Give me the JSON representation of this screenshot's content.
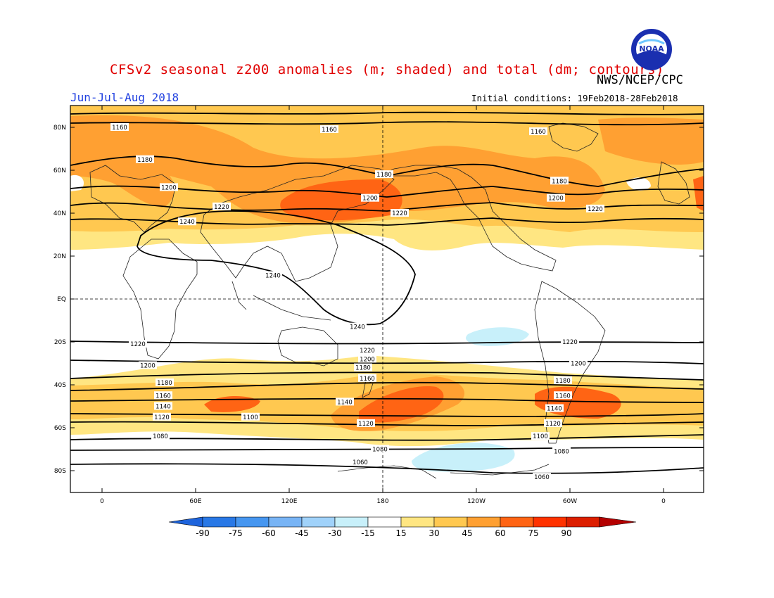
{
  "header": {
    "title": "CFSv2 seasonal z200 anomalies (m; shaded) and total (dm; contours)",
    "agency": "NWS/NCEP/CPC",
    "period": "Jun-Jul-Aug 2018",
    "initial_conditions": "Initial conditions: 19Feb2018-28Feb2018"
  },
  "logo": {
    "icon": "noaa-logo",
    "text": "NOAA"
  },
  "axes": {
    "lat_labels": [
      "80N",
      "60N",
      "40N",
      "20N",
      "EQ",
      "20S",
      "40S",
      "60S",
      "80S"
    ],
    "lon_labels": [
      "0",
      "60E",
      "120E",
      "180",
      "120W",
      "60W",
      "0"
    ]
  },
  "contours": [
    {
      "value": "1160",
      "lat": 80
    },
    {
      "value": "1180",
      "lat": 63
    },
    {
      "value": "1200",
      "lat": 49
    },
    {
      "value": "1220",
      "lat": 39
    },
    {
      "value": "1240",
      "lat": 20
    },
    {
      "value": "1220",
      "lat": -21
    },
    {
      "value": "1200",
      "lat": -31
    },
    {
      "value": "1180",
      "lat": -39
    },
    {
      "value": "1160",
      "lat": -45
    },
    {
      "value": "1140",
      "lat": -50
    },
    {
      "value": "1120",
      "lat": -55
    },
    {
      "value": "1100",
      "lat": -62
    },
    {
      "value": "1080",
      "lat": -67
    },
    {
      "value": "1060",
      "lat": -76
    }
  ],
  "colorbar": {
    "labels": [
      "-90",
      "-75",
      "-60",
      "-45",
      "-30",
      "-15",
      "15",
      "30",
      "45",
      "60",
      "75",
      "90"
    ],
    "colors": [
      "#1e64dc",
      "#2878e6",
      "#4696f0",
      "#78b4f5",
      "#a0d2fa",
      "#c8f0fa",
      "#ffffff",
      "#ffe682",
      "#ffc850",
      "#ffa032",
      "#ff6414",
      "#ff3200",
      "#dc1e00",
      "#b40000"
    ]
  }
}
